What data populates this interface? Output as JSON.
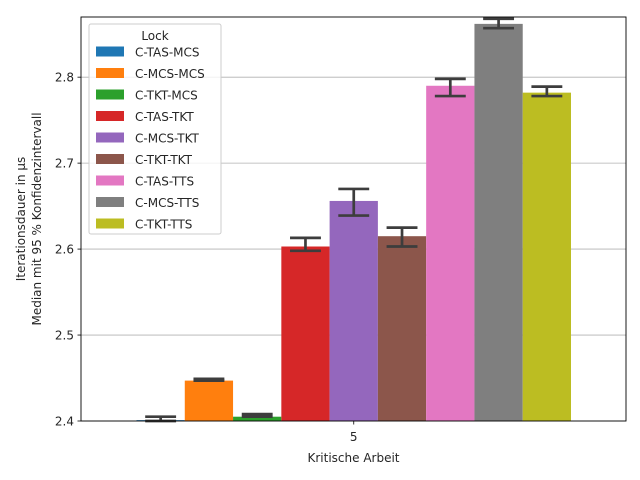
{
  "chart_data": {
    "type": "bar",
    "title": "",
    "xlabel": "Kritische Arbeit",
    "ylabel_lines": [
      "Iterationsdauer in µs",
      "Median mit 95 % Konfidenzintervall"
    ],
    "categories": [
      "5"
    ],
    "ylim": [
      2.4,
      2.87
    ],
    "yticks": [
      2.4,
      2.5,
      2.6,
      2.7,
      2.8
    ],
    "ytick_labels": [
      "2.4",
      "2.5",
      "2.6",
      "2.7",
      "2.8"
    ],
    "grid": "y",
    "legend": {
      "title": "Lock",
      "placement": "top-left"
    },
    "series": [
      {
        "name": "C-TAS-MCS",
        "color": "#1f77b4",
        "values": [
          2.401
        ],
        "ci": [
          2.4,
          2.405
        ]
      },
      {
        "name": "C-MCS-MCS",
        "color": "#ff7f0e",
        "values": [
          2.447
        ],
        "ci": [
          2.447,
          2.449
        ]
      },
      {
        "name": "C-TKT-MCS",
        "color": "#2ca02c",
        "values": [
          2.405
        ],
        "ci": [
          2.405,
          2.408
        ]
      },
      {
        "name": "C-TAS-TKT",
        "color": "#d62728",
        "values": [
          2.603
        ],
        "ci": [
          2.598,
          2.613
        ]
      },
      {
        "name": "C-MCS-TKT",
        "color": "#9467bd",
        "values": [
          2.656
        ],
        "ci": [
          2.639,
          2.67
        ]
      },
      {
        "name": "C-TKT-TKT",
        "color": "#8c564b",
        "values": [
          2.615
        ],
        "ci": [
          2.603,
          2.625
        ]
      },
      {
        "name": "C-TAS-TTS",
        "color": "#e377c2",
        "values": [
          2.79
        ],
        "ci": [
          2.778,
          2.798
        ]
      },
      {
        "name": "C-MCS-TTS",
        "color": "#7f7f7f",
        "values": [
          2.862
        ],
        "ci": [
          2.857,
          2.868
        ]
      },
      {
        "name": "C-TKT-TTS",
        "color": "#bcbd22",
        "values": [
          2.782
        ],
        "ci": [
          2.778,
          2.789
        ]
      }
    ]
  }
}
